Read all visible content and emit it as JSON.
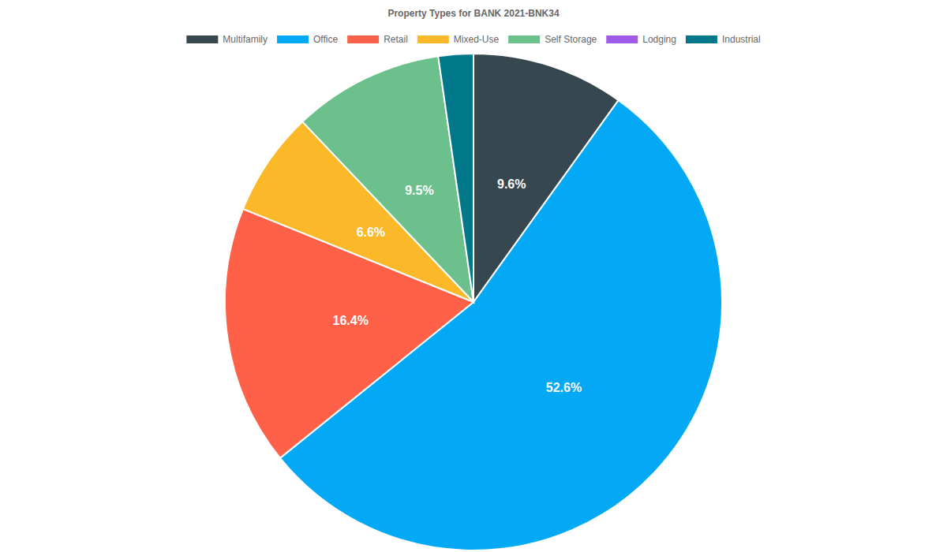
{
  "chart_data": {
    "type": "pie",
    "title": "Property Types for BANK 2021-BNK34",
    "categories": [
      "Multifamily",
      "Office",
      "Retail",
      "Mixed-Use",
      "Self Storage",
      "Lodging",
      "Industrial"
    ],
    "values": [
      9.6,
      52.6,
      16.4,
      6.6,
      9.5,
      0,
      2.2
    ],
    "value_labels": [
      "9.6%",
      "52.6%",
      "16.4%",
      "6.6%",
      "9.5%",
      null,
      null
    ],
    "colors": [
      "#37474f",
      "#03a9f4",
      "#fe6148",
      "#fbb829",
      "#6cc08b",
      "#a05ce8",
      "#00788a"
    ],
    "data_labels": true,
    "legend": "top"
  }
}
